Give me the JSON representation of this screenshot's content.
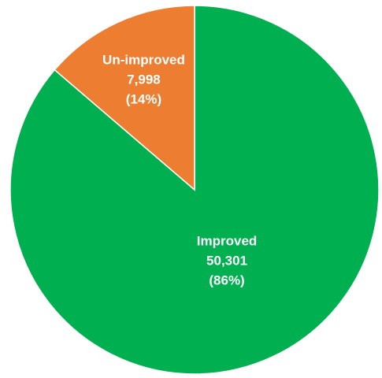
{
  "chart_data": {
    "type": "pie",
    "start": "top",
    "direction": "clockwise",
    "slices": [
      {
        "name": "Improved",
        "value": 50301,
        "value_label": "50,301",
        "percent_label": "(86%)",
        "color": "#00b050"
      },
      {
        "name": "Un-improved",
        "value": 7998,
        "value_label": "7,998",
        "percent_label": "(14%)",
        "color": "#ed7d31"
      }
    ]
  }
}
